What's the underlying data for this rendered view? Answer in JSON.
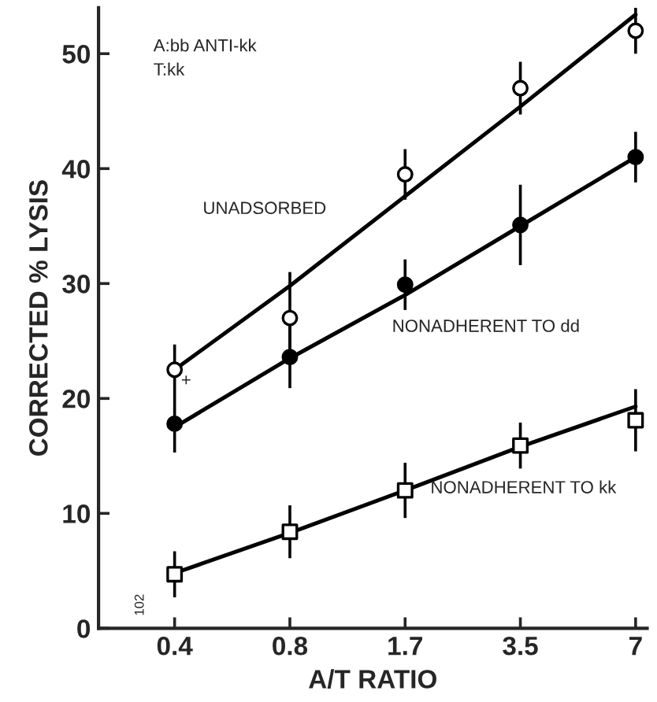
{
  "chart_data": {
    "type": "scatter",
    "xlabel": "A/T RATIO",
    "ylabel": "CORRECTED % LYSIS",
    "categories": [
      "0.4",
      "0.8",
      "1.7",
      "3.5",
      "7"
    ],
    "ylim": [
      0,
      54
    ],
    "yticks": [
      0,
      10,
      20,
      30,
      40,
      50
    ],
    "grid": false,
    "series": [
      {
        "marker": "circle",
        "color": "#ffffff",
        "values": [
          22.5,
          27,
          39.5,
          47,
          52
        ],
        "errors": [
          2.2,
          4,
          2.2,
          2.3,
          2
        ]
      },
      {
        "marker": "circle",
        "color": "#000000",
        "values": [
          17.8,
          23.6,
          29.9,
          35.1,
          41
        ],
        "errors": [
          2.5,
          2.7,
          2.2,
          3.5,
          2.2
        ]
      },
      {
        "marker": "square",
        "color": "#ffffff",
        "values": [
          4.7,
          8.4,
          12,
          15.9,
          18.1
        ],
        "errors": [
          2,
          2.3,
          2.4,
          2,
          2.7
        ]
      },
      {
        "type": "line",
        "color": "#000000",
        "values": [
          22.5,
          29.8,
          37.6,
          45.4,
          53.4
        ]
      },
      {
        "type": "line",
        "color": "#000000",
        "values": [
          17.5,
          23.5,
          29,
          35,
          41
        ]
      },
      {
        "type": "line",
        "color": "#000000",
        "values": [
          4.8,
          8.3,
          12,
          15.8,
          19.3
        ]
      }
    ],
    "annotations": [
      "A:bb ANTI-kk\nT:kk",
      "102",
      "UNADSORBED",
      "NONADHERENT TO dd",
      "NONADHERENT TO kk",
      {
        "text": "+",
        "x": "0.4",
        "y": 21.5
      }
    ]
  }
}
